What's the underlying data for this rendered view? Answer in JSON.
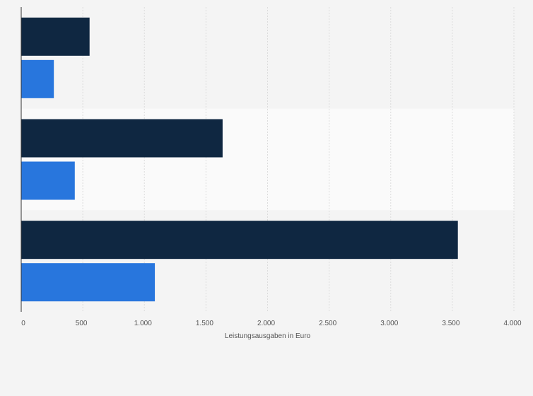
{
  "chart_data": {
    "type": "bar",
    "orientation": "horizontal",
    "categories": [
      "",
      "",
      ""
    ],
    "series": [
      {
        "values": [
          555,
          1635,
          3545
        ],
        "color": "#0f2741"
      },
      {
        "values": [
          265,
          435,
          1085
        ],
        "color": "#2876dd"
      }
    ],
    "xlabel": "Leistungsausgaben in Euro",
    "ylabel": "",
    "xlim": [
      0,
      4000
    ],
    "x_ticks": [
      0,
      500,
      1000,
      1500,
      2000,
      2500,
      3000,
      3500,
      4000
    ],
    "x_tick_labels": [
      "0",
      "500",
      "1.000",
      "1.500",
      "2.000",
      "2.500",
      "3.000",
      "3.500",
      "4.000"
    ],
    "grid": true,
    "legend": "none",
    "colors": {
      "background": "#f4f4f4",
      "band_alt": "#fafafa",
      "grid": "#dcdcdc",
      "axis": "#333333"
    }
  }
}
